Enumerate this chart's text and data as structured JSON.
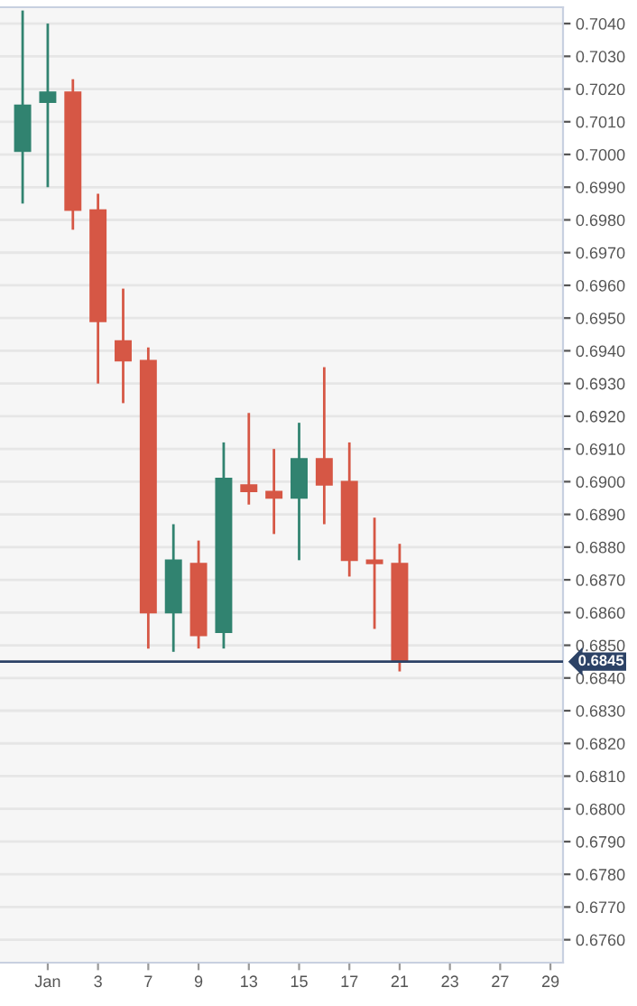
{
  "chart_data": {
    "type": "candlestick",
    "categories": [
      null,
      "Jan",
      null,
      "3",
      null,
      "7",
      null,
      "9",
      null,
      "13",
      null,
      "15",
      null,
      "17",
      null,
      "21",
      null,
      "23",
      null,
      "27",
      null,
      "29"
    ],
    "ohlc": [
      [
        0.7001,
        0.7044,
        0.6985,
        0.7015
      ],
      [
        0.7016,
        0.704,
        0.699,
        0.7019
      ],
      [
        0.7019,
        0.7023,
        0.6977,
        0.6983
      ],
      [
        0.6983,
        0.6988,
        0.693,
        0.6949
      ],
      [
        0.6943,
        0.6959,
        0.6924,
        0.6937
      ],
      [
        0.6937,
        0.6941,
        0.6849,
        0.686
      ],
      [
        0.686,
        0.6887,
        0.6848,
        0.6876
      ],
      [
        0.6875,
        0.6882,
        0.6849,
        0.6853
      ],
      [
        0.6854,
        0.6912,
        0.6849,
        0.6901
      ],
      [
        0.6899,
        0.6921,
        0.6893,
        0.6897
      ],
      [
        0.6897,
        0.691,
        0.6884,
        0.6895
      ],
      [
        0.6895,
        0.6918,
        0.6876,
        0.6907
      ],
      [
        0.6907,
        0.6935,
        0.6887,
        0.6899
      ],
      [
        0.69,
        0.6912,
        0.6871,
        0.6876
      ],
      [
        0.6876,
        0.6889,
        0.6855,
        0.6875
      ],
      [
        0.6875,
        0.6881,
        0.6842,
        0.6845
      ],
      null,
      null,
      null,
      null,
      null,
      null
    ],
    "colors": [
      "#318370",
      "#318370",
      "#d65745",
      "#d65745",
      "#d65745",
      "#d65745",
      "#318370",
      "#d65745",
      "#318370",
      "#d65745",
      "#d65745",
      "#318370",
      "#d65745",
      "#d65745",
      "#d65745",
      "#d65745",
      null,
      null,
      null,
      null,
      null,
      null
    ],
    "ylim": [
      0.6753,
      0.7045
    ],
    "yticks": [
      {
        "value": 0.676,
        "label": "0.6760"
      },
      {
        "value": 0.677,
        "label": "0.6770"
      },
      {
        "value": 0.678,
        "label": "0.6780"
      },
      {
        "value": 0.679,
        "label": "0.6790"
      },
      {
        "value": 0.68,
        "label": "0.6800"
      },
      {
        "value": 0.681,
        "label": "0.6810"
      },
      {
        "value": 0.682,
        "label": "0.6820"
      },
      {
        "value": 0.683,
        "label": "0.6830"
      },
      {
        "value": 0.684,
        "label": "0.6840"
      },
      {
        "value": 0.685,
        "label": "0.6850"
      },
      {
        "value": 0.686,
        "label": "0.6860"
      },
      {
        "value": 0.687,
        "label": "0.6870"
      },
      {
        "value": 0.688,
        "label": "0.6880"
      },
      {
        "value": 0.689,
        "label": "0.6890"
      },
      {
        "value": 0.69,
        "label": "0.6900"
      },
      {
        "value": 0.691,
        "label": "0.6910"
      },
      {
        "value": 0.692,
        "label": "0.6920"
      },
      {
        "value": 0.693,
        "label": "0.6930"
      },
      {
        "value": 0.694,
        "label": "0.6940"
      },
      {
        "value": 0.695,
        "label": "0.6950"
      },
      {
        "value": 0.696,
        "label": "0.6960"
      },
      {
        "value": 0.697,
        "label": "0.6970"
      },
      {
        "value": 0.698,
        "label": "0.6980"
      },
      {
        "value": 0.699,
        "label": "0.6990"
      },
      {
        "value": 0.7,
        "label": "0.7000"
      },
      {
        "value": 0.701,
        "label": "0.7010"
      },
      {
        "value": 0.702,
        "label": "0.7020"
      },
      {
        "value": 0.703,
        "label": "0.7030"
      },
      {
        "value": 0.704,
        "label": "0.7040"
      }
    ],
    "ref_lines": [
      {
        "axis": "y",
        "value": 0.6845,
        "label": "0.6845",
        "color": "#2c4266"
      }
    ],
    "grid": "y"
  }
}
